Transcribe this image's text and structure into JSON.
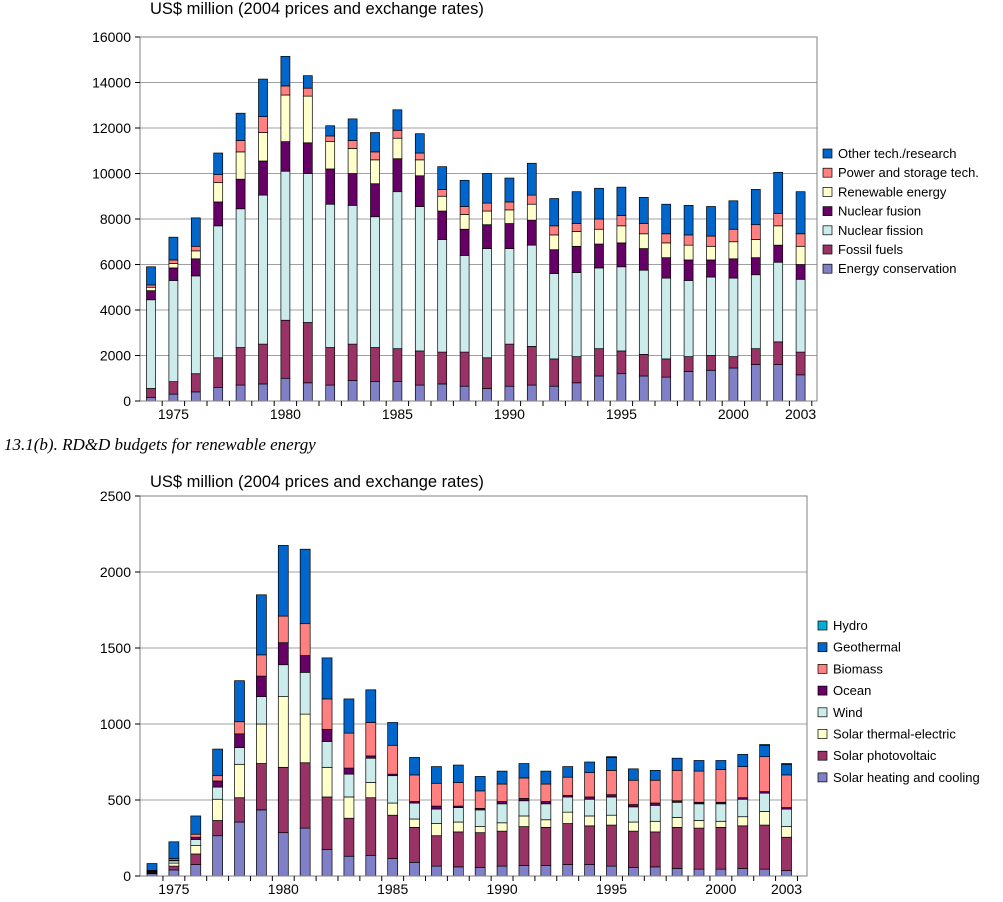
{
  "caption_b": "13.1(b). RD&D budgets for renewable energy",
  "chart_data": [
    {
      "type": "bar",
      "stacked": true,
      "title": "US$ million (2004 prices and exchange rates)",
      "ylim": [
        0,
        16000
      ],
      "yticks": [
        0,
        2000,
        4000,
        6000,
        8000,
        10000,
        12000,
        14000,
        16000
      ],
      "xtick_labels": [
        "1975",
        "1980",
        "1985",
        "1990",
        "1995",
        "2000",
        "2003"
      ],
      "grid": true,
      "legend_position": "right",
      "categories": [
        1974,
        1975,
        1976,
        1977,
        1978,
        1979,
        1980,
        1981,
        1982,
        1983,
        1984,
        1985,
        1986,
        1987,
        1988,
        1989,
        1990,
        1991,
        1992,
        1993,
        1994,
        1995,
        1996,
        1997,
        1998,
        1999,
        2000,
        2001,
        2002,
        2003
      ],
      "series": [
        {
          "name": "Energy conservation",
          "color": "#8080c8",
          "values": [
            150,
            300,
            400,
            600,
            700,
            750,
            1000,
            800,
            700,
            900,
            850,
            850,
            700,
            750,
            650,
            550,
            650,
            700,
            650,
            800,
            1100,
            1200,
            1100,
            1050,
            1300,
            1350,
            1450,
            1600,
            1600,
            1150
          ]
        },
        {
          "name": "Fossil fuels",
          "color": "#993366",
          "values": [
            400,
            550,
            800,
            1300,
            1650,
            1750,
            2550,
            2650,
            1650,
            1600,
            1500,
            1450,
            1500,
            1400,
            1500,
            1350,
            1850,
            1700,
            1200,
            1150,
            1200,
            1000,
            950,
            800,
            650,
            650,
            500,
            700,
            1000,
            1000
          ]
        },
        {
          "name": "Nuclear fission",
          "color": "#ccecec",
          "values": [
            3900,
            4450,
            4300,
            5800,
            6100,
            6550,
            6550,
            6550,
            6300,
            6100,
            5750,
            6900,
            6350,
            4950,
            4250,
            4800,
            4200,
            4450,
            3750,
            3700,
            3550,
            3700,
            3700,
            3550,
            3350,
            3450,
            3450,
            3250,
            3500,
            3200
          ]
        },
        {
          "name": "Nuclear fusion",
          "color": "#660066",
          "values": [
            400,
            550,
            750,
            1050,
            1300,
            1500,
            1300,
            1350,
            1550,
            1400,
            1450,
            1450,
            1350,
            1250,
            1150,
            1050,
            1100,
            1100,
            1050,
            1150,
            1050,
            1050,
            950,
            900,
            900,
            750,
            850,
            750,
            750,
            650
          ]
        },
        {
          "name": "Renewable energy",
          "color": "#ffffcc",
          "values": [
            150,
            200,
            350,
            850,
            1200,
            1250,
            2050,
            2050,
            1200,
            1100,
            1050,
            900,
            700,
            650,
            650,
            600,
            600,
            700,
            650,
            650,
            650,
            750,
            650,
            650,
            650,
            600,
            750,
            800,
            850,
            800
          ]
        },
        {
          "name": "Power and storage tech.",
          "color": "#ff8080",
          "values": [
            100,
            150,
            200,
            350,
            500,
            700,
            400,
            350,
            250,
            350,
            350,
            350,
            300,
            300,
            350,
            350,
            350,
            400,
            400,
            350,
            450,
            450,
            450,
            400,
            450,
            450,
            550,
            650,
            550,
            550
          ]
        },
        {
          "name": "Other tech./research",
          "color": "#0066cc",
          "values": [
            800,
            1000,
            1250,
            950,
            1200,
            1650,
            1300,
            550,
            450,
            950,
            850,
            900,
            850,
            1000,
            1150,
            1300,
            1050,
            1400,
            1200,
            1400,
            1350,
            1250,
            1150,
            1300,
            1300,
            1300,
            1250,
            1550,
            1800,
            1850
          ]
        }
      ]
    },
    {
      "type": "bar",
      "stacked": true,
      "title": "US$ million (2004 prices and exchange rates)",
      "ylim": [
        0,
        2500
      ],
      "yticks": [
        0,
        500,
        1000,
        1500,
        2000,
        2500
      ],
      "xtick_labels": [
        "1975",
        "1980",
        "1985",
        "1990",
        "1995",
        "2000",
        "2003"
      ],
      "grid": true,
      "legend_position": "right",
      "categories": [
        1974,
        1975,
        1976,
        1977,
        1978,
        1979,
        1980,
        1981,
        1982,
        1983,
        1984,
        1985,
        1986,
        1987,
        1988,
        1989,
        1990,
        1991,
        1992,
        1993,
        1994,
        1995,
        1996,
        1997,
        1998,
        1999,
        2000,
        2001,
        2002,
        2003
      ],
      "series": [
        {
          "name": "Solar heating and cooling",
          "color": "#8080c8",
          "values": [
            15,
            40,
            75,
            265,
            355,
            435,
            285,
            315,
            175,
            130,
            135,
            115,
            90,
            65,
            60,
            55,
            65,
            70,
            70,
            75,
            75,
            65,
            55,
            60,
            50,
            45,
            45,
            50,
            45,
            35
          ]
        },
        {
          "name": "Solar photovoltaic",
          "color": "#993366",
          "values": [
            5,
            25,
            70,
            100,
            160,
            305,
            430,
            430,
            345,
            250,
            380,
            285,
            230,
            200,
            230,
            230,
            230,
            255,
            250,
            270,
            255,
            270,
            240,
            230,
            270,
            270,
            275,
            280,
            290,
            220
          ]
        },
        {
          "name": "Solar thermal-electric",
          "color": "#ffffcc",
          "values": [
            5,
            20,
            55,
            140,
            220,
            260,
            465,
            320,
            195,
            140,
            100,
            80,
            55,
            80,
            65,
            40,
            55,
            70,
            50,
            75,
            65,
            65,
            60,
            70,
            65,
            50,
            40,
            60,
            90,
            70
          ]
        },
        {
          "name": "Wind",
          "color": "#ccecec",
          "values": [
            5,
            15,
            40,
            80,
            110,
            180,
            210,
            275,
            170,
            150,
            160,
            180,
            105,
            95,
            95,
            110,
            125,
            100,
            105,
            100,
            110,
            120,
            100,
            105,
            100,
            110,
            115,
            115,
            120,
            115
          ]
        },
        {
          "name": "Ocean",
          "color": "#660066",
          "values": [
            2,
            5,
            15,
            40,
            90,
            135,
            145,
            110,
            80,
            40,
            15,
            10,
            10,
            20,
            10,
            10,
            15,
            15,
            15,
            10,
            15,
            15,
            15,
            15,
            10,
            10,
            10,
            10,
            10,
            10
          ]
        },
        {
          "name": "Biomass",
          "color": "#ff8080",
          "values": [
            5,
            10,
            20,
            35,
            80,
            140,
            175,
            210,
            200,
            230,
            220,
            190,
            175,
            150,
            155,
            115,
            115,
            135,
            115,
            120,
            160,
            160,
            160,
            150,
            200,
            205,
            215,
            205,
            230,
            215
          ]
        },
        {
          "name": "Geothermal",
          "color": "#0066cc",
          "values": [
            45,
            110,
            120,
            175,
            270,
            395,
            465,
            490,
            270,
            225,
            215,
            150,
            115,
            110,
            115,
            95,
            85,
            95,
            85,
            70,
            70,
            85,
            75,
            65,
            80,
            70,
            60,
            80,
            75,
            70
          ]
        },
        {
          "name": "Hydro",
          "color": "#00b0d8",
          "values": [
            0,
            0,
            0,
            0,
            0,
            0,
            0,
            0,
            0,
            0,
            0,
            0,
            0,
            0,
            0,
            0,
            0,
            0,
            0,
            0,
            0,
            5,
            0,
            0,
            0,
            0,
            0,
            0,
            5,
            5
          ]
        }
      ]
    }
  ]
}
